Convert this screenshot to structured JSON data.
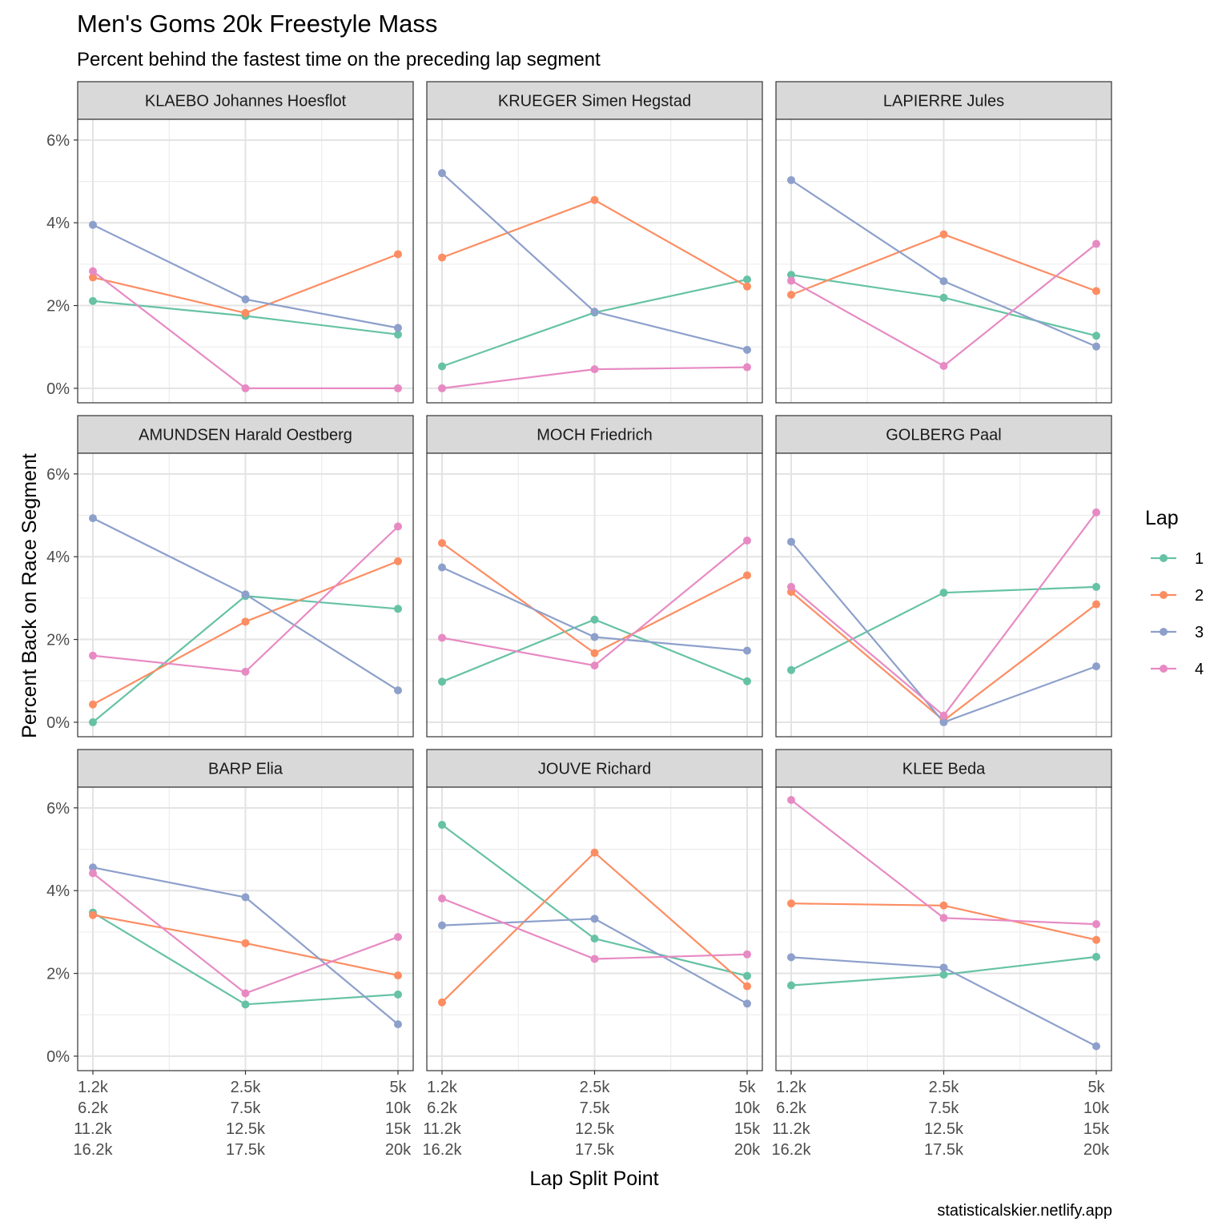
{
  "chart_data": {
    "type": "line",
    "title": "Men's Goms 20k Freestyle Mass",
    "subtitle": "Percent behind the fastest time on the preceding lap segment",
    "xlabel": "Lap Split Point",
    "ylabel": "Percent Back on Race Segment",
    "caption": "statisticalskier.netlify.app",
    "x_tick_labels": [
      [
        "1.2k",
        "6.2k",
        "11.2k",
        "16.2k"
      ],
      [
        "2.5k",
        "7.5k",
        "12.5k",
        "17.5k"
      ],
      [
        "5k",
        "10k",
        "15k",
        "20k"
      ]
    ],
    "y_ticks": [
      0,
      2,
      4,
      6
    ],
    "y_tick_labels": [
      "0%",
      "2%",
      "4%",
      "6%"
    ],
    "ylim": [
      -0.35,
      6.5
    ],
    "grid": true,
    "legend": {
      "title": "Lap",
      "position": "right",
      "items": [
        {
          "label": "1",
          "color": "#66c2a5"
        },
        {
          "label": "2",
          "color": "#fc8d62"
        },
        {
          "label": "3",
          "color": "#8da0cb"
        },
        {
          "label": "4",
          "color": "#e78ac3"
        }
      ]
    },
    "panels": [
      {
        "name": "KLAEBO Johannes Hoesflot",
        "series": [
          {
            "lap": "1",
            "values": [
              2.11,
              1.75,
              1.3
            ]
          },
          {
            "lap": "2",
            "values": [
              2.68,
              1.82,
              3.24
            ]
          },
          {
            "lap": "3",
            "values": [
              3.95,
              2.15,
              1.46
            ]
          },
          {
            "lap": "4",
            "values": [
              2.83,
              0.0,
              0.0
            ]
          }
        ]
      },
      {
        "name": "KRUEGER Simen Hegstad",
        "series": [
          {
            "lap": "1",
            "values": [
              0.53,
              1.83,
              2.63
            ]
          },
          {
            "lap": "2",
            "values": [
              3.16,
              4.55,
              2.46
            ]
          },
          {
            "lap": "3",
            "values": [
              5.2,
              1.85,
              0.93
            ]
          },
          {
            "lap": "4",
            "values": [
              0.0,
              0.46,
              0.51
            ]
          }
        ]
      },
      {
        "name": "LAPIERRE Jules",
        "series": [
          {
            "lap": "1",
            "values": [
              2.74,
              2.19,
              1.27
            ]
          },
          {
            "lap": "2",
            "values": [
              2.26,
              3.72,
              2.35
            ]
          },
          {
            "lap": "3",
            "values": [
              5.03,
              2.59,
              1.01
            ]
          },
          {
            "lap": "4",
            "values": [
              2.6,
              0.54,
              3.49
            ]
          }
        ]
      },
      {
        "name": "AMUNDSEN Harald Oestberg",
        "series": [
          {
            "lap": "1",
            "values": [
              0.0,
              3.05,
              2.74
            ]
          },
          {
            "lap": "2",
            "values": [
              0.43,
              2.43,
              3.89
            ]
          },
          {
            "lap": "3",
            "values": [
              4.93,
              3.09,
              0.77
            ]
          },
          {
            "lap": "4",
            "values": [
              1.61,
              1.22,
              4.73
            ]
          }
        ]
      },
      {
        "name": "MOCH Friedrich",
        "series": [
          {
            "lap": "1",
            "values": [
              0.98,
              2.48,
              0.99
            ]
          },
          {
            "lap": "2",
            "values": [
              4.33,
              1.67,
              3.55
            ]
          },
          {
            "lap": "3",
            "values": [
              3.74,
              2.06,
              1.73
            ]
          },
          {
            "lap": "4",
            "values": [
              2.04,
              1.37,
              4.39
            ]
          }
        ]
      },
      {
        "name": "GOLBERG Paal",
        "series": [
          {
            "lap": "1",
            "values": [
              1.26,
              3.13,
              3.27
            ]
          },
          {
            "lap": "2",
            "values": [
              3.15,
              0.04,
              2.85
            ]
          },
          {
            "lap": "3",
            "values": [
              4.36,
              0.0,
              1.35
            ]
          },
          {
            "lap": "4",
            "values": [
              3.27,
              0.16,
              5.07
            ]
          }
        ]
      },
      {
        "name": "BARP Elia",
        "series": [
          {
            "lap": "1",
            "values": [
              3.47,
              1.25,
              1.49
            ]
          },
          {
            "lap": "2",
            "values": [
              3.41,
              2.73,
              1.95
            ]
          },
          {
            "lap": "3",
            "values": [
              4.56,
              3.84,
              0.77
            ]
          },
          {
            "lap": "4",
            "values": [
              4.42,
              1.52,
              2.88
            ]
          }
        ]
      },
      {
        "name": "JOUVE Richard",
        "series": [
          {
            "lap": "1",
            "values": [
              5.59,
              2.84,
              1.94
            ]
          },
          {
            "lap": "2",
            "values": [
              1.3,
              4.92,
              1.69
            ]
          },
          {
            "lap": "3",
            "values": [
              3.16,
              3.32,
              1.27
            ]
          },
          {
            "lap": "4",
            "values": [
              3.81,
              2.35,
              2.46
            ]
          }
        ]
      },
      {
        "name": "KLEE Beda",
        "series": [
          {
            "lap": "1",
            "values": [
              1.71,
              1.97,
              2.4
            ]
          },
          {
            "lap": "2",
            "values": [
              3.69,
              3.64,
              2.81
            ]
          },
          {
            "lap": "3",
            "values": [
              2.39,
              2.14,
              0.24
            ]
          },
          {
            "lap": "4",
            "values": [
              6.19,
              3.34,
              3.19
            ]
          }
        ]
      }
    ]
  }
}
